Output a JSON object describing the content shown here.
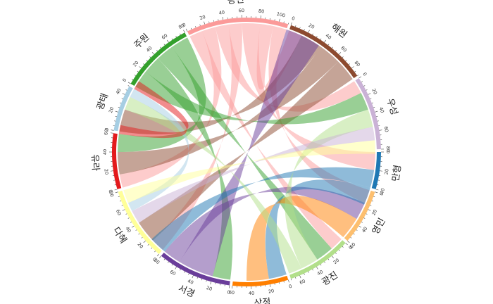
{
  "chart_data": {
    "type": "chord",
    "title": "",
    "tick_step": 20,
    "sectors": [
      {
        "name": "만형",
        "total": 40,
        "color": "#1f78b4"
      },
      {
        "name": "영민",
        "total": 60,
        "color": "#fdbf6f"
      },
      {
        "name": "광진",
        "total": 70,
        "color": "#b2df8a"
      },
      {
        "name": "상정",
        "total": 60,
        "color": "#ff7f00"
      },
      {
        "name": "서경",
        "total": 80,
        "color": "#6a3d9a"
      },
      {
        "name": "다혜",
        "total": 80,
        "color": "#ffff99"
      },
      {
        "name": "유라",
        "total": 60,
        "color": "#e31a1c"
      },
      {
        "name": "광태",
        "total": 50,
        "color": "#a6cee3"
      },
      {
        "name": "주원",
        "total": 80,
        "color": "#33a02c"
      },
      {
        "name": "동진",
        "total": 110,
        "color": "#fb9a99"
      },
      {
        "name": "해원",
        "total": 90,
        "color": "#8c4a2f"
      },
      {
        "name": "우성",
        "total": 80,
        "color": "#cab2d6"
      }
    ],
    "links": [
      {
        "from": "동진",
        "to": "광진",
        "value": 15
      },
      {
        "from": "동진",
        "to": "유라",
        "value": 15
      },
      {
        "from": "동진",
        "to": "우성",
        "value": 15
      },
      {
        "from": "동진",
        "to": "다혜",
        "value": 15
      },
      {
        "from": "동진",
        "to": "만형",
        "value": 20
      },
      {
        "from": "동진",
        "to": "해원",
        "value": 15
      },
      {
        "from": "동진",
        "to": "영민",
        "value": 15
      },
      {
        "from": "해원",
        "to": "광태",
        "value": 25
      },
      {
        "from": "해원",
        "to": "유라",
        "value": 25
      },
      {
        "from": "해원",
        "to": "다혜",
        "value": 25
      },
      {
        "from": "주원",
        "to": "우성",
        "value": 20
      },
      {
        "from": "주원",
        "to": "서경",
        "value": 20
      },
      {
        "from": "주원",
        "to": "광진",
        "value": 20
      },
      {
        "from": "주원",
        "to": "유라",
        "value": 20
      },
      {
        "from": "서경",
        "to": "동진",
        "value": 40
      },
      {
        "from": "서경",
        "to": "영민",
        "value": 20
      },
      {
        "from": "만형",
        "to": "서경",
        "value": 20
      },
      {
        "from": "만형",
        "to": "상정",
        "value": 20
      },
      {
        "from": "상정",
        "to": "영민",
        "value": 25
      },
      {
        "from": "광진",
        "to": "우성",
        "value": 20
      },
      {
        "from": "광진",
        "to": "광태",
        "value": 15
      },
      {
        "from": "우성",
        "to": "다혜",
        "value": 15
      },
      {
        "from": "광태",
        "to": "다혜",
        "value": 10
      },
      {
        "from": "유라",
        "to": "광태",
        "value": 10
      },
      {
        "from": "다혜",
        "to": "우성",
        "value": 15
      }
    ]
  }
}
